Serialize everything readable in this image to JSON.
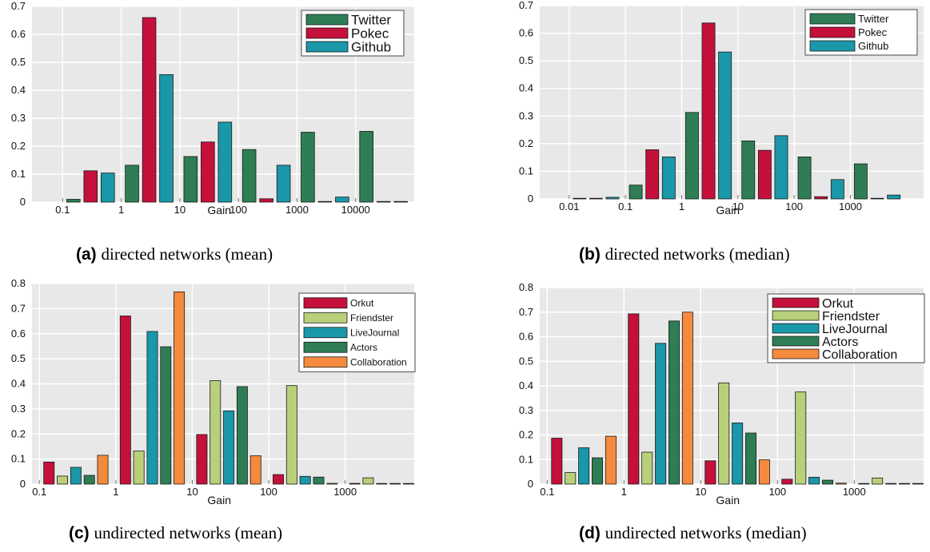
{
  "figure": {
    "captions": [
      {
        "tag": "(a)",
        "text": "directed networks (mean)"
      },
      {
        "tag": "(b)",
        "text": "directed networks (median)"
      },
      {
        "tag": "(c)",
        "text": "undirected networks (mean)"
      },
      {
        "tag": "(d)",
        "text": "undirected networks (median)"
      }
    ]
  },
  "chart_data": [
    {
      "type": "bar",
      "xlabel": "Gain",
      "ylabel": "",
      "ylim": [
        0,
        0.7
      ],
      "yticks": [
        "0",
        "0.1",
        "0.2",
        "0.3",
        "0.4",
        "0.5",
        "0.6",
        "0.7"
      ],
      "xscale": "log",
      "xticks": [
        "0.1",
        "1",
        "10",
        "100",
        "1000",
        "10000"
      ],
      "xlim": [
        0.03,
        100000
      ],
      "grid": true,
      "legend_position": "top-right",
      "bins": [
        0.3,
        3,
        30,
        300,
        3000,
        30000
      ],
      "series": [
        {
          "name": "Twitter",
          "color": "#2e7d55",
          "values": [
            0.01,
            0.132,
            0.163,
            0.188,
            0.25,
            0.253
          ]
        },
        {
          "name": "Pokec",
          "color": "#c4103a",
          "values": [
            0.112,
            0.66,
            0.215,
            0.012,
            0.0,
            0.0
          ]
        },
        {
          "name": "Github",
          "color": "#1a97a8",
          "values": [
            0.104,
            0.456,
            0.286,
            0.132,
            0.018,
            0.0
          ]
        }
      ]
    },
    {
      "type": "bar",
      "xlabel": "Gain",
      "ylabel": "",
      "ylim": [
        0,
        0.7
      ],
      "yticks": [
        "0",
        "0.1",
        "0.2",
        "0.3",
        "0.4",
        "0.5",
        "0.6",
        "0.7"
      ],
      "xscale": "log",
      "xticks": [
        "0.01",
        "0.1",
        "1",
        "10",
        "100",
        "1000"
      ],
      "xlim": [
        0.003,
        20000
      ],
      "grid": true,
      "legend_position": "top-right",
      "bins": [
        0.03,
        0.3,
        3,
        30,
        300,
        3000
      ],
      "series": [
        {
          "name": "Twitter",
          "color": "#2e7d55",
          "values": [
            0.0,
            0.05,
            0.313,
            0.21,
            0.152,
            0.127
          ]
        },
        {
          "name": "Pokec",
          "color": "#c4103a",
          "values": [
            0.002,
            0.178,
            0.637,
            0.176,
            0.008,
            0.002
          ]
        },
        {
          "name": "Github",
          "color": "#1a97a8",
          "values": [
            0.006,
            0.152,
            0.532,
            0.229,
            0.07,
            0.014
          ]
        }
      ]
    },
    {
      "type": "bar",
      "xlabel": "Gain",
      "ylabel": "",
      "ylim": [
        0,
        0.8
      ],
      "yticks": [
        "0",
        "0.1",
        "0.2",
        "0.3",
        "0.4",
        "0.5",
        "0.6",
        "0.7",
        "0.8"
      ],
      "xscale": "log",
      "xticks": [
        "0.1",
        "1",
        "10",
        "100",
        "1000"
      ],
      "xlim": [
        0.08,
        8000
      ],
      "grid": true,
      "legend_position": "top-right",
      "bins": [
        0.3,
        3,
        30,
        300,
        3000
      ],
      "series": [
        {
          "name": "Orkut",
          "color": "#c4103a",
          "values": [
            0.088,
            0.671,
            0.198,
            0.038,
            0.003
          ]
        },
        {
          "name": "Friendster",
          "color": "#b8d07a",
          "values": [
            0.032,
            0.132,
            0.413,
            0.393,
            0.025
          ]
        },
        {
          "name": "LiveJournal",
          "color": "#1a97a8",
          "values": [
            0.067,
            0.609,
            0.292,
            0.031,
            0.002
          ]
        },
        {
          "name": "Actors",
          "color": "#2e7d55",
          "values": [
            0.035,
            0.548,
            0.389,
            0.028,
            0.002
          ]
        },
        {
          "name": "Collaboration",
          "color": "#f58a3c",
          "values": [
            0.115,
            0.767,
            0.113,
            0.003,
            0.002
          ]
        }
      ]
    },
    {
      "type": "bar",
      "xlabel": "Gain",
      "ylabel": "",
      "ylim": [
        0,
        0.8
      ],
      "yticks": [
        "0",
        "0.1",
        "0.2",
        "0.3",
        "0.4",
        "0.5",
        "0.6",
        "0.7",
        "0.8"
      ],
      "xscale": "log",
      "xticks": [
        "0.1",
        "1",
        "10",
        "100",
        "1000"
      ],
      "xlim": [
        0.08,
        8000
      ],
      "grid": true,
      "legend_position": "top-right",
      "bins": [
        0.3,
        3,
        30,
        300,
        3000
      ],
      "series": [
        {
          "name": "Orkut",
          "color": "#c4103a",
          "values": [
            0.187,
            0.693,
            0.095,
            0.02,
            0.002
          ]
        },
        {
          "name": "Friendster",
          "color": "#b8d07a",
          "values": [
            0.047,
            0.13,
            0.412,
            0.375,
            0.025
          ]
        },
        {
          "name": "LiveJournal",
          "color": "#1a97a8",
          "values": [
            0.148,
            0.573,
            0.249,
            0.028,
            0.002
          ]
        },
        {
          "name": "Actors",
          "color": "#2e7d55",
          "values": [
            0.107,
            0.664,
            0.208,
            0.016,
            0.002
          ]
        },
        {
          "name": "Collaboration",
          "color": "#f58a3c",
          "values": [
            0.195,
            0.7,
            0.099,
            0.004,
            0.002
          ]
        }
      ]
    }
  ]
}
